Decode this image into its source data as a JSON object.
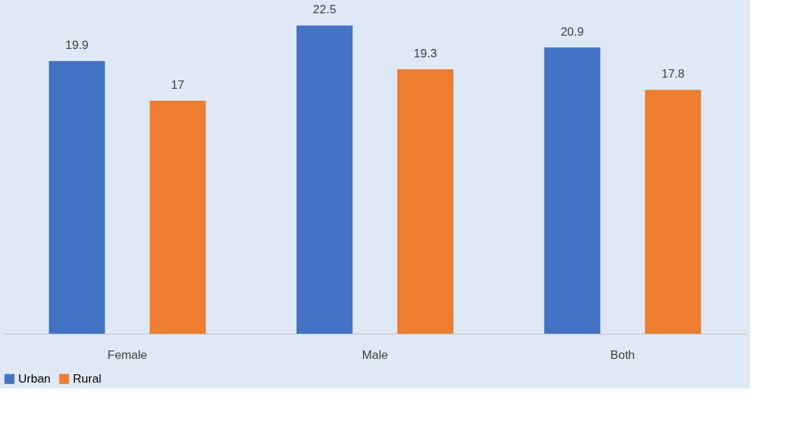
{
  "chart_data": {
    "type": "bar",
    "categories": [
      "Female",
      "Male",
      "Both"
    ],
    "series": [
      {
        "name": "Urban",
        "color": "#4472c4",
        "values": [
          19.9,
          22.5,
          20.9
        ]
      },
      {
        "name": "Rural",
        "color": "#ed7d31",
        "values": [
          17,
          19.3,
          17.8
        ]
      }
    ],
    "data_labels": true,
    "legend": "bottom",
    "tick_labels": "x"
  }
}
